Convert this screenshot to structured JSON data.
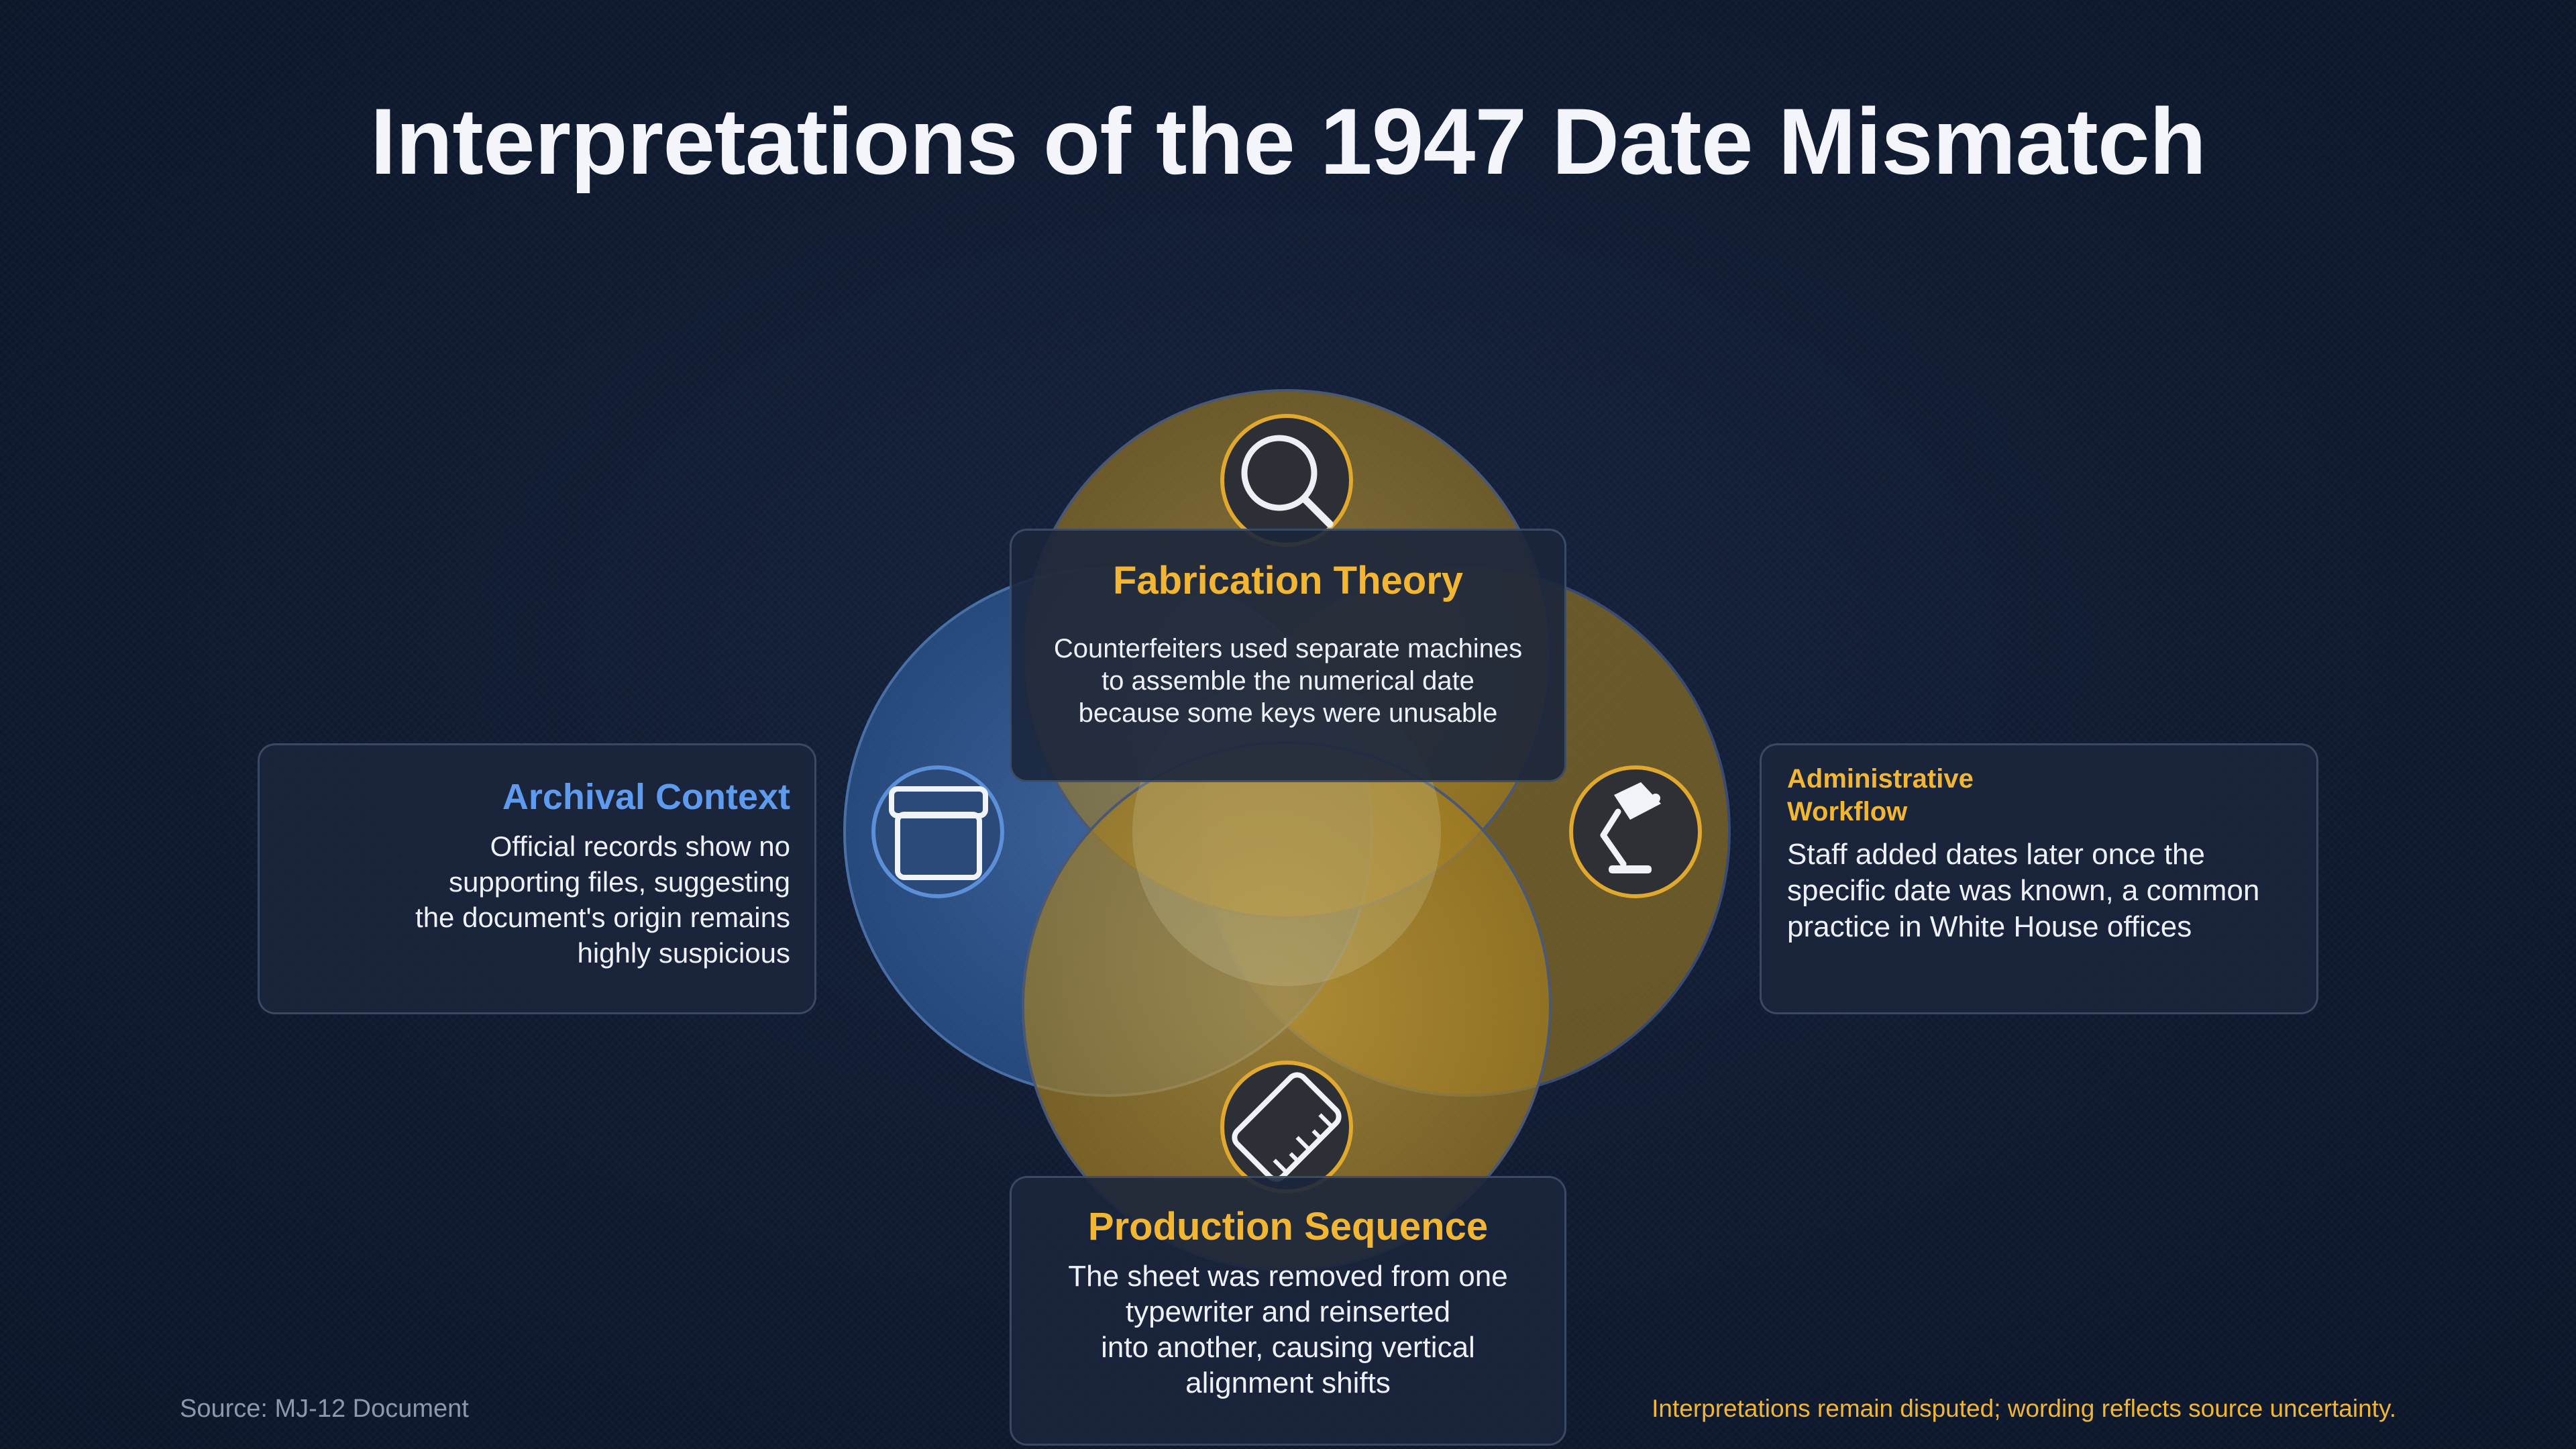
{
  "title": "Interpretations of the 1947 Date Mismatch",
  "diagram": {
    "type": "venn",
    "circles": [
      {
        "id": "fabrication",
        "color": "#b8912a"
      },
      {
        "id": "archival",
        "color": "#3f6fb0"
      },
      {
        "id": "administrative",
        "color": "#a58225"
      },
      {
        "id": "production",
        "color": "#b8912a"
      }
    ],
    "icons": {
      "fabrication": "magnifying-glass-icon",
      "archival": "archive-box-icon",
      "administrative": "desk-lamp-icon",
      "production": "ruler-icon"
    }
  },
  "cards": {
    "fabrication": {
      "title": "Fabrication Theory",
      "body": "Counterfeiters used separate machines\nto assemble the numerical date\nbecause some keys were unusable"
    },
    "archival": {
      "title": "Archival Context",
      "body": "Official records show no\nsupporting files, suggesting\nthe document's origin remains\nhighly suspicious"
    },
    "administrative": {
      "title": "Administrative\nWorkflow",
      "body": "Staff added dates later once the\nspecific date was known, a common\npractice in White House offices"
    },
    "production": {
      "title": "Production Sequence",
      "body": "The sheet was removed from one\ntypewriter and reinserted\ninto another, causing vertical\nalignment shifts"
    }
  },
  "footer": {
    "source": "Source: MJ-12 Document",
    "note": "Interpretations remain disputed; wording reflects source uncertainty."
  },
  "colors": {
    "background": "#0f1a30",
    "accent_gold": "#f2b632",
    "accent_blue": "#5e9bee",
    "card_bg": "#1b263c"
  }
}
